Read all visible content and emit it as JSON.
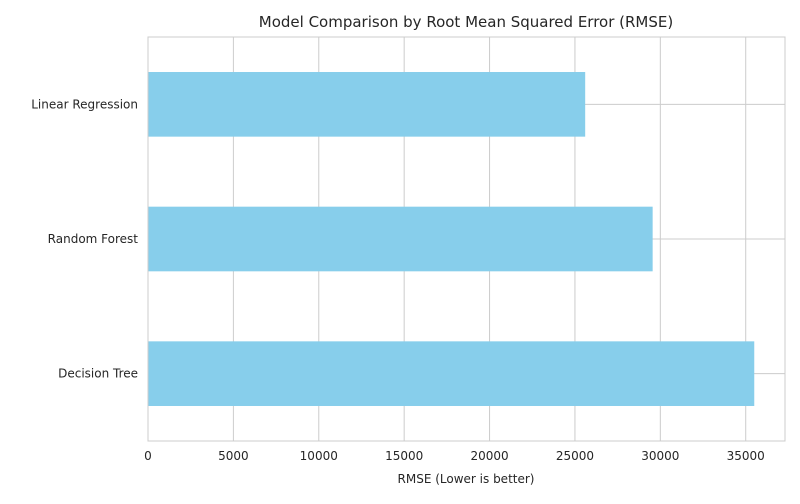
{
  "chart_data": {
    "type": "bar",
    "orientation": "horizontal",
    "title": "Model Comparison by Root Mean Squared Error (RMSE)",
    "xlabel": "RMSE (Lower is better)",
    "ylabel": "",
    "categories": [
      "Linear Regression",
      "Random Forest",
      "Decision Tree"
    ],
    "values": [
      25600,
      29550,
      35500
    ],
    "xlim": [
      0,
      37300
    ],
    "xticks": [
      0,
      5000,
      10000,
      15000,
      20000,
      25000,
      30000,
      35000
    ],
    "xtick_labels": [
      "0",
      "5000",
      "10000",
      "15000",
      "20000",
      "25000",
      "30000",
      "35000"
    ],
    "bar_color": "#87ceeb",
    "grid": true
  }
}
